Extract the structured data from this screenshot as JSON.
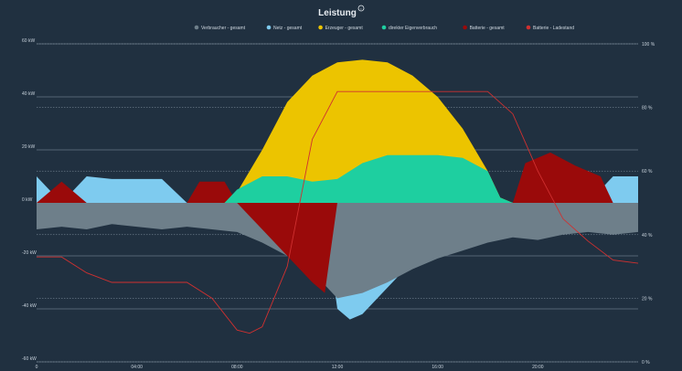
{
  "chart_data": {
    "type": "area",
    "title": "Leistung",
    "legend_position": "top",
    "grid": true,
    "y_left": {
      "unit": "kW",
      "range": [
        -60,
        60
      ],
      "ticks": [
        "60 kW",
        "40 kW",
        "20 kW",
        "0 kW",
        "-20 kW",
        "-40 kW",
        "-60 kW"
      ]
    },
    "y_right": {
      "unit": "%",
      "range": [
        0,
        100
      ],
      "ticks": [
        "100 %",
        "80 %",
        "60 %",
        "40 %",
        "20 %",
        "0 %"
      ]
    },
    "x": {
      "range_hours": [
        0,
        24
      ],
      "ticks": [
        "0",
        "04:00",
        "08:00",
        "12:00",
        "16:00",
        "20:00"
      ]
    },
    "series": [
      {
        "name": "Verbraucher - gesamt",
        "color": "#6e7f8a",
        "axis": "left",
        "points": [
          [
            0,
            -10
          ],
          [
            1,
            -9
          ],
          [
            2,
            -10
          ],
          [
            3,
            -8
          ],
          [
            4,
            -9
          ],
          [
            5,
            -10
          ],
          [
            6,
            -9
          ],
          [
            7,
            -10
          ],
          [
            8,
            -11
          ],
          [
            9,
            -15
          ],
          [
            10,
            -20
          ],
          [
            11,
            -26
          ],
          [
            12,
            -36
          ],
          [
            13,
            -34
          ],
          [
            14,
            -30
          ],
          [
            15,
            -25
          ],
          [
            16,
            -21
          ],
          [
            17,
            -18
          ],
          [
            18,
            -15
          ],
          [
            19,
            -13
          ],
          [
            20,
            -14
          ],
          [
            21,
            -12
          ],
          [
            22,
            -11
          ],
          [
            23,
            -12
          ],
          [
            24,
            -11
          ]
        ]
      },
      {
        "name": "Netz - gesamt",
        "color": "#7ecbef",
        "axis": "left",
        "points": [
          [
            0,
            10
          ],
          [
            1,
            0
          ],
          [
            2,
            10
          ],
          [
            3,
            9
          ],
          [
            4,
            9
          ],
          [
            5,
            9
          ],
          [
            6,
            0
          ],
          [
            7,
            0
          ],
          [
            8,
            0
          ],
          [
            9,
            0
          ],
          [
            10,
            0
          ],
          [
            11,
            0
          ],
          [
            11.5,
            -6
          ],
          [
            12,
            -40
          ],
          [
            12.5,
            -44
          ],
          [
            13,
            -42
          ],
          [
            14,
            -32
          ],
          [
            15,
            -22
          ],
          [
            16,
            -14
          ],
          [
            17,
            -5
          ],
          [
            17.5,
            0
          ],
          [
            22,
            0
          ],
          [
            23,
            10
          ],
          [
            24,
            10
          ]
        ]
      },
      {
        "name": "Erzeuger - gesamt",
        "color": "#ecc400",
        "axis": "left",
        "points": [
          [
            7.5,
            0
          ],
          [
            8,
            4
          ],
          [
            9,
            20
          ],
          [
            10,
            38
          ],
          [
            11,
            48
          ],
          [
            12,
            53
          ],
          [
            13,
            54
          ],
          [
            14,
            53
          ],
          [
            15,
            48
          ],
          [
            16,
            40
          ],
          [
            17,
            28
          ],
          [
            18,
            12
          ],
          [
            18.5,
            2
          ],
          [
            19,
            0
          ]
        ]
      },
      {
        "name": "direkter Eigenverbrauch",
        "color": "#1ecfa0",
        "axis": "left",
        "points": [
          [
            7.5,
            0
          ],
          [
            8,
            5
          ],
          [
            9,
            10
          ],
          [
            10,
            10
          ],
          [
            11,
            8
          ],
          [
            12,
            9
          ],
          [
            13,
            15
          ],
          [
            14,
            18
          ],
          [
            15,
            18
          ],
          [
            16,
            18
          ],
          [
            17,
            17
          ],
          [
            18,
            12
          ],
          [
            18.5,
            2
          ],
          [
            19,
            0
          ]
        ]
      },
      {
        "name": "Batterie - gesamt",
        "color": "#9a0a0a",
        "axis": "left",
        "points": [
          [
            0,
            0
          ],
          [
            1,
            8
          ],
          [
            2,
            0
          ],
          [
            6,
            0
          ],
          [
            6.5,
            8
          ],
          [
            7.5,
            8
          ],
          [
            8,
            0
          ],
          [
            8.5,
            -5
          ],
          [
            9,
            -10
          ],
          [
            10,
            -20
          ],
          [
            11,
            -30
          ],
          [
            11.5,
            -34
          ],
          [
            12,
            0
          ],
          [
            19,
            0
          ],
          [
            19.5,
            15
          ],
          [
            20.5,
            19
          ],
          [
            21.5,
            14
          ],
          [
            22.5,
            10
          ],
          [
            23,
            0
          ],
          [
            24,
            0
          ]
        ]
      },
      {
        "name": "Batterie - Ladestand",
        "color": "#d03030",
        "axis": "right",
        "points": [
          [
            0,
            33
          ],
          [
            1,
            33
          ],
          [
            2,
            28
          ],
          [
            3,
            25
          ],
          [
            4,
            25
          ],
          [
            5,
            25
          ],
          [
            6,
            25
          ],
          [
            7,
            20
          ],
          [
            8,
            10
          ],
          [
            8.5,
            9
          ],
          [
            9,
            11
          ],
          [
            10,
            30
          ],
          [
            11,
            70
          ],
          [
            12,
            85
          ],
          [
            13,
            85
          ],
          [
            14,
            85
          ],
          [
            15,
            85
          ],
          [
            16,
            85
          ],
          [
            17,
            85
          ],
          [
            18,
            85
          ],
          [
            19,
            78
          ],
          [
            20,
            60
          ],
          [
            21,
            45
          ],
          [
            22,
            38
          ],
          [
            23,
            32
          ],
          [
            24,
            31
          ]
        ]
      }
    ]
  }
}
